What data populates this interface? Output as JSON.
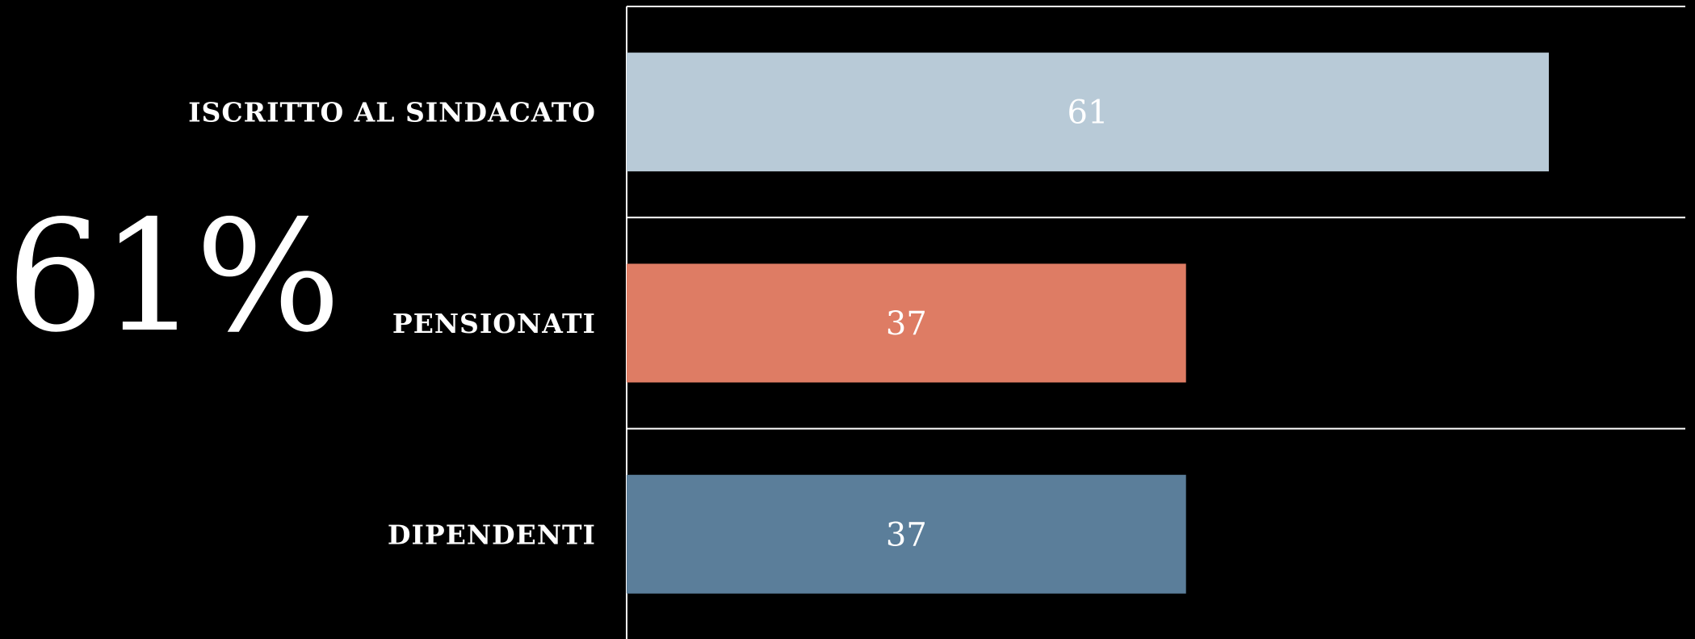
{
  "highlight": {
    "value_text": "61%"
  },
  "chart_data": {
    "type": "bar",
    "orientation": "horizontal",
    "categories": [
      "ISCRITTO AL SINDACATO",
      "PENSIONATI",
      "DIPENDENTI"
    ],
    "values": [
      61,
      37,
      37
    ],
    "data_labels": [
      "61",
      "37",
      "37"
    ],
    "bar_colors": [
      "#b8cad7",
      "#de7c64",
      "#5b7e9a"
    ],
    "background_color": "#000000",
    "label_color": "#ffffff",
    "xlim": [
      0,
      70
    ],
    "grid": "horizontal separators between categories",
    "legend": "none",
    "title": "",
    "xlabel": "",
    "ylabel": ""
  }
}
